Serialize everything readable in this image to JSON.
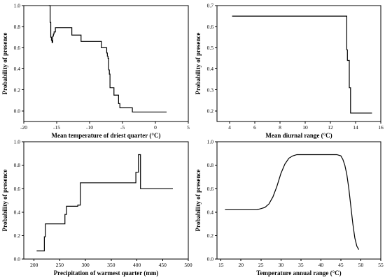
{
  "chart_data": [
    {
      "type": "line",
      "step": true,
      "xlabel": "Mean temperature of driest quarter (°C)",
      "ylabel": "Probability of presence",
      "xlim": [
        -20,
        5
      ],
      "ylim": [
        -0.1,
        1.0
      ],
      "xticks": [
        -20,
        -15,
        -10,
        -5,
        0,
        5
      ],
      "yticks": [
        0.0,
        0.2,
        0.4,
        0.6,
        0.8,
        1.0
      ],
      "ytick_decimals": 1,
      "x": [
        -16.2,
        -16.0,
        -16.0,
        -15.9,
        -15.9,
        -15.8,
        -15.7,
        -15.6,
        -15.5,
        -15.4,
        -15.2,
        -12.7,
        -12.4,
        -11.3,
        -8.2,
        -7.4,
        -7.3,
        -7.2,
        -7.1,
        -7.0,
        -6.9,
        -6.3,
        -5.6,
        -5.4,
        -4.0,
        -3.5,
        1.7
      ],
      "y": [
        1.0,
        0.96,
        0.84,
        0.8,
        0.7,
        0.67,
        0.65,
        0.71,
        0.73,
        0.75,
        0.79,
        0.72,
        0.72,
        0.66,
        0.6,
        0.55,
        0.52,
        0.5,
        0.39,
        0.35,
        0.22,
        0.15,
        0.07,
        0.03,
        0.03,
        -0.01,
        -0.01
      ]
    },
    {
      "type": "line",
      "step": true,
      "xlabel": "Mean diurnal range (°C)",
      "ylabel": "Probability of presence",
      "xlim": [
        3,
        16
      ],
      "ylim": [
        0.15,
        0.7
      ],
      "xticks": [
        4,
        6,
        8,
        10,
        12,
        14,
        16
      ],
      "yticks": [
        0.2,
        0.3,
        0.4,
        0.5,
        0.6,
        0.7
      ],
      "ytick_decimals": 1,
      "x": [
        4.2,
        13.2,
        13.3,
        13.35,
        13.5,
        13.6,
        15.3
      ],
      "y": [
        0.65,
        0.65,
        0.49,
        0.44,
        0.31,
        0.19,
        0.19
      ]
    },
    {
      "type": "line",
      "step": true,
      "xlabel": "Precipitation of warmest quarter (mm)",
      "ylabel": "Probability of presence",
      "xlim": [
        180,
        500
      ],
      "ylim": [
        0.0,
        1.0
      ],
      "xticks": [
        200,
        250,
        300,
        350,
        400,
        450,
        500
      ],
      "yticks": [
        0.0,
        0.2,
        0.4,
        0.6,
        0.8,
        1.0
      ],
      "ytick_decimals": 1,
      "x": [
        205,
        220,
        222,
        260,
        263,
        285,
        290,
        395,
        398,
        403,
        407,
        470
      ],
      "y": [
        0.07,
        0.19,
        0.3,
        0.38,
        0.45,
        0.46,
        0.65,
        0.65,
        0.74,
        0.89,
        0.6,
        0.6
      ]
    },
    {
      "type": "line",
      "step": false,
      "xlabel": "Temperature annual range (°C)",
      "ylabel": "Probability of presence",
      "xlim": [
        14,
        55
      ],
      "ylim": [
        0.0,
        1.0
      ],
      "xticks": [
        15,
        20,
        25,
        30,
        35,
        40,
        45,
        50,
        55
      ],
      "yticks": [
        0.0,
        0.2,
        0.4,
        0.6,
        0.8,
        1.0
      ],
      "ytick_decimals": 1,
      "x": [
        16,
        20,
        24,
        26,
        27,
        28,
        29,
        30,
        31,
        32,
        33,
        34,
        36,
        40,
        44,
        45,
        45.5,
        46,
        46.5,
        47,
        47.5,
        48,
        48.5,
        49,
        49.5
      ],
      "y": [
        0.42,
        0.42,
        0.42,
        0.44,
        0.47,
        0.53,
        0.62,
        0.73,
        0.81,
        0.86,
        0.88,
        0.89,
        0.89,
        0.89,
        0.89,
        0.88,
        0.85,
        0.8,
        0.72,
        0.6,
        0.45,
        0.3,
        0.18,
        0.11,
        0.08
      ]
    }
  ]
}
